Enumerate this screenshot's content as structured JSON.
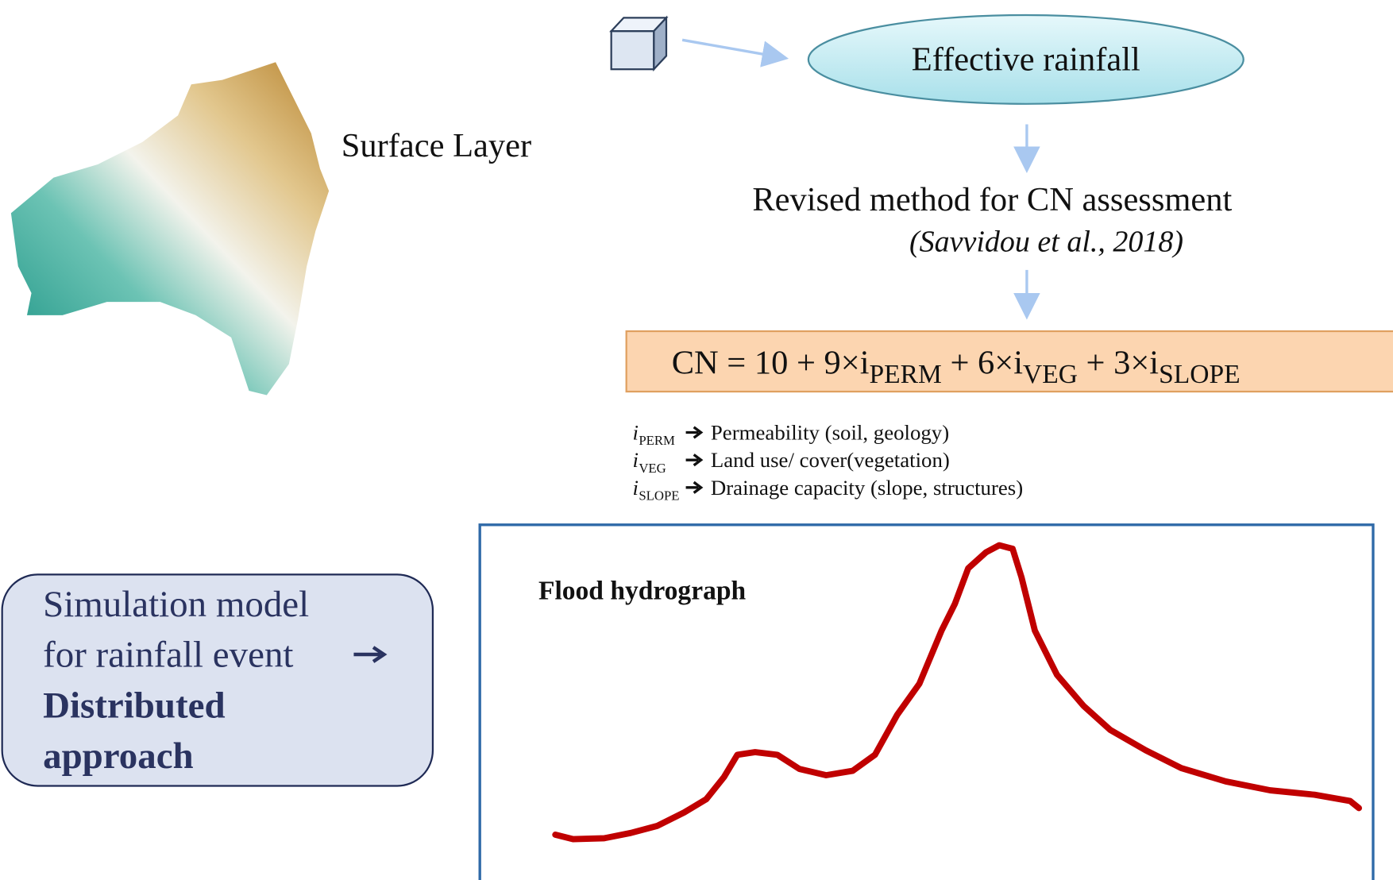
{
  "surface_layer": {
    "label": "Surface Layer"
  },
  "effective_rainfall": {
    "label": "Effective rainfall"
  },
  "method": {
    "title": "Revised method for CN assessment",
    "citation": "(Savvidou et al., 2018)"
  },
  "formula": {
    "parts": [
      "CN = 10 + 9×i",
      "PERM",
      " + 6×i",
      "VEG",
      " + 3×i",
      "SLOPE"
    ]
  },
  "legend": {
    "items": [
      {
        "symbol": "i",
        "subscript": "PERM",
        "text": "Permeability (soil, geology)"
      },
      {
        "symbol": "i",
        "subscript": "VEG",
        "text": "Land use/ cover(vegetation)"
      },
      {
        "symbol": "i",
        "subscript": "SLOPE",
        "text": "Drainage capacity (slope, structures)"
      }
    ]
  },
  "simulation_box": {
    "lines": [
      "Simulation model",
      "for rainfall event",
      "Distributed",
      "approach"
    ]
  },
  "hydrograph": {
    "title": "Flood hydrograph"
  }
}
